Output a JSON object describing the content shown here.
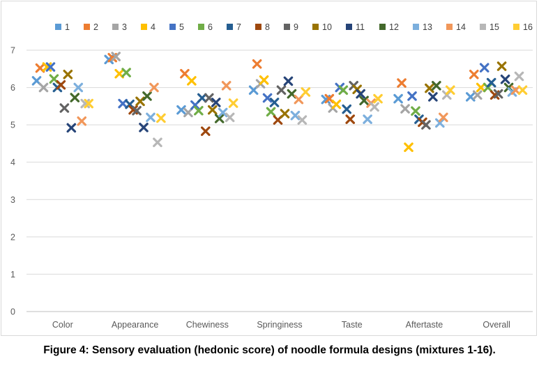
{
  "caption": "Figure 4: Sensory evaluation (hedonic score) of noodle formula designs (mixtures 1-16).",
  "chart_data": {
    "type": "scatter",
    "marker": "x",
    "categories": [
      "Color",
      "Appearance",
      "Chewiness",
      "Springiness",
      "Taste",
      "Aftertaste",
      "Overall"
    ],
    "ylim": [
      0,
      7
    ],
    "yticks": [
      0,
      1,
      2,
      3,
      4,
      5,
      6,
      7
    ],
    "grid": true,
    "legend_position": "top",
    "series": [
      {
        "name": "1",
        "color": "#5b9bd5",
        "values": [
          6.18,
          6.75,
          5.4,
          5.93,
          5.68,
          5.7,
          5.75
        ]
      },
      {
        "name": "2",
        "color": "#ed7d31",
        "values": [
          6.52,
          6.8,
          6.37,
          6.63,
          5.7,
          6.12,
          6.35
        ]
      },
      {
        "name": "3",
        "color": "#a5a5a5",
        "values": [
          6.0,
          6.83,
          5.33,
          6.1,
          5.45,
          5.43,
          5.8
        ]
      },
      {
        "name": "4",
        "color": "#ffc000",
        "values": [
          6.55,
          6.37,
          6.18,
          6.2,
          5.55,
          4.4,
          6.0
        ]
      },
      {
        "name": "5",
        "color": "#4472c4",
        "values": [
          6.55,
          5.57,
          5.53,
          5.72,
          6.0,
          5.77,
          6.53
        ]
      },
      {
        "name": "6",
        "color": "#70ad47",
        "values": [
          6.23,
          6.4,
          5.38,
          5.35,
          5.93,
          5.37,
          6.0
        ]
      },
      {
        "name": "7",
        "color": "#255e91",
        "values": [
          6.0,
          5.55,
          5.72,
          5.6,
          5.42,
          5.15,
          6.13
        ]
      },
      {
        "name": "8",
        "color": "#9e480e",
        "values": [
          6.07,
          5.4,
          4.83,
          5.13,
          5.15,
          5.07,
          5.8
        ]
      },
      {
        "name": "9",
        "color": "#636363",
        "values": [
          5.45,
          5.38,
          5.72,
          5.93,
          6.05,
          5.0,
          5.83
        ]
      },
      {
        "name": "10",
        "color": "#997300",
        "values": [
          6.35,
          5.63,
          5.4,
          5.3,
          5.95,
          5.98,
          6.57
        ]
      },
      {
        "name": "11",
        "color": "#264478",
        "values": [
          4.92,
          4.93,
          5.6,
          6.17,
          5.83,
          5.75,
          6.22
        ]
      },
      {
        "name": "12",
        "color": "#43682b",
        "values": [
          5.73,
          5.77,
          5.17,
          5.83,
          5.65,
          6.05,
          6.0
        ]
      },
      {
        "name": "13",
        "color": "#7cafdd",
        "values": [
          6.0,
          5.2,
          5.33,
          5.25,
          5.15,
          5.05,
          5.88
        ]
      },
      {
        "name": "14",
        "color": "#f1975a",
        "values": [
          5.1,
          6.0,
          6.05,
          5.68,
          5.58,
          5.2,
          5.93
        ]
      },
      {
        "name": "15",
        "color": "#b7b7b7",
        "values": [
          5.57,
          4.53,
          5.2,
          5.13,
          5.48,
          5.8,
          6.3
        ]
      },
      {
        "name": "16",
        "color": "#ffcd33",
        "values": [
          5.57,
          5.18,
          5.58,
          5.88,
          5.7,
          5.93,
          5.93
        ]
      }
    ]
  }
}
